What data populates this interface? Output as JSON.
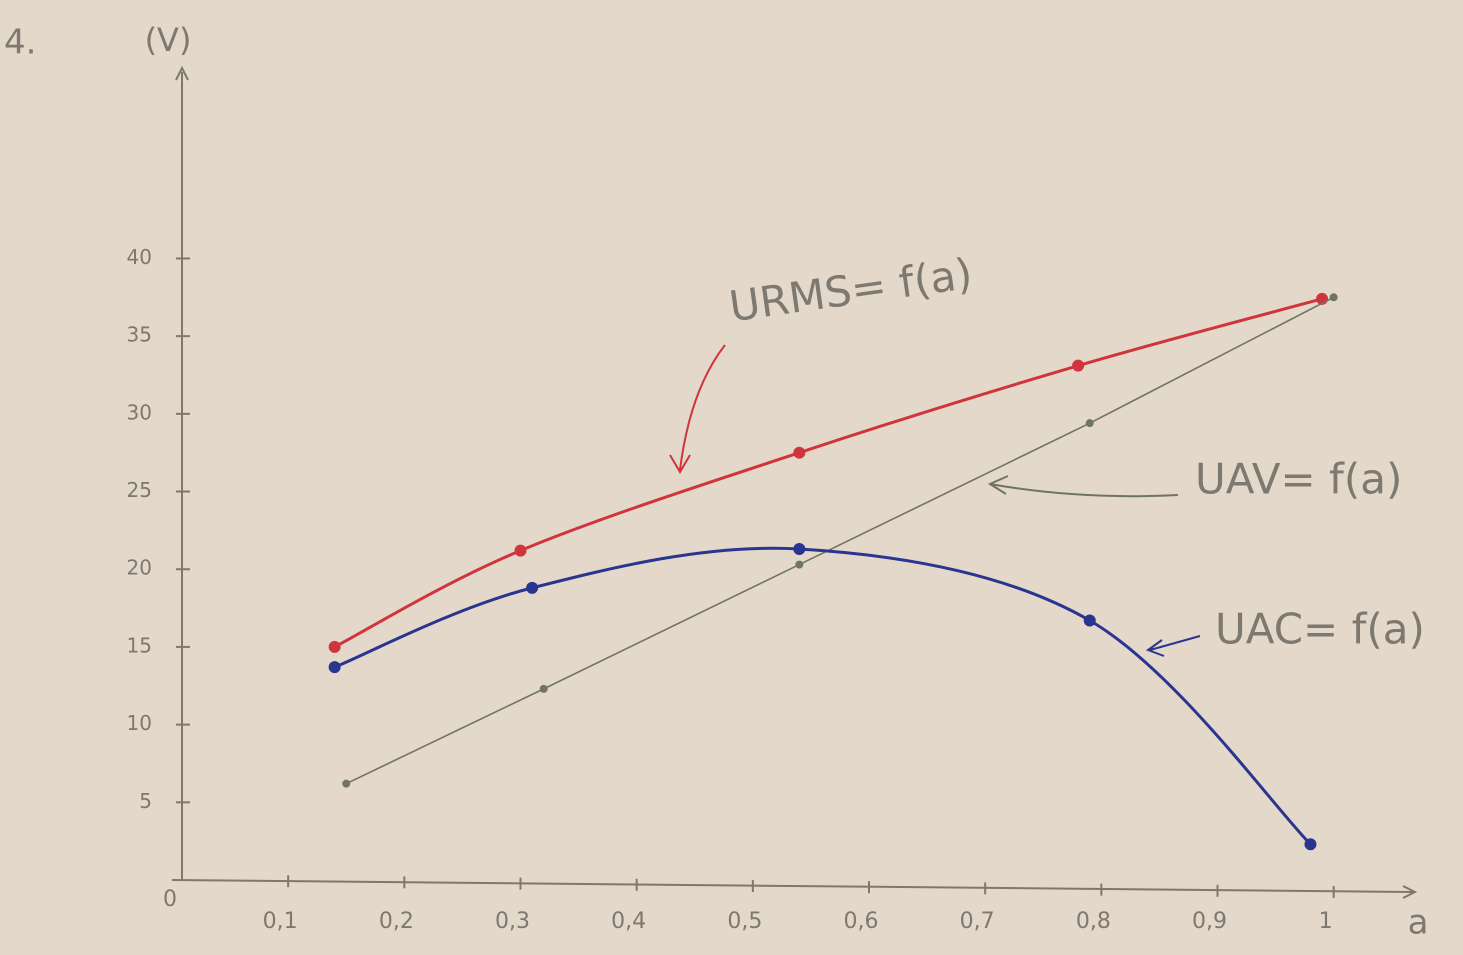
{
  "chart_data": {
    "type": "line",
    "title": "4.",
    "y_label": "(V)",
    "x_label": "a",
    "xlim": [
      0,
      1.07
    ],
    "ylim": [
      0,
      52
    ],
    "xticks": [
      0,
      {
        "value": 0.1,
        "label": "0,1"
      },
      {
        "value": 0.2,
        "label": "0,2"
      },
      {
        "value": 0.3,
        "label": "0,3"
      },
      {
        "value": 0.4,
        "label": "0,4"
      },
      {
        "value": 0.5,
        "label": "0,5"
      },
      {
        "value": 0.6,
        "label": "0,6"
      },
      {
        "value": 0.7,
        "label": "0,7"
      },
      {
        "value": 0.8,
        "label": "0,8"
      },
      {
        "value": 0.9,
        "label": "0,9"
      },
      1
    ],
    "yticks": [
      5,
      10,
      15,
      20,
      25,
      30,
      35,
      40
    ],
    "series": [
      {
        "name": "URMS= f(a)",
        "color": "#d0343c",
        "x": [
          0.14,
          0.3,
          0.54,
          0.78,
          0.99
        ],
        "values": [
          15,
          21.2,
          27.5,
          33.1,
          37.4
        ]
      },
      {
        "name": "UAV= f(a)",
        "color": "#6f7560",
        "x": [
          0.15,
          0.32,
          0.54,
          0.79,
          1.0
        ],
        "values": [
          6.2,
          12.3,
          20.3,
          29.4,
          37.5
        ]
      },
      {
        "name": "UAC= f(a)",
        "color": "#2a3590",
        "x": [
          0.14,
          0.31,
          0.54,
          0.79,
          0.98
        ],
        "values": [
          13.7,
          18.8,
          21.3,
          16.7,
          2.3
        ]
      }
    ]
  }
}
